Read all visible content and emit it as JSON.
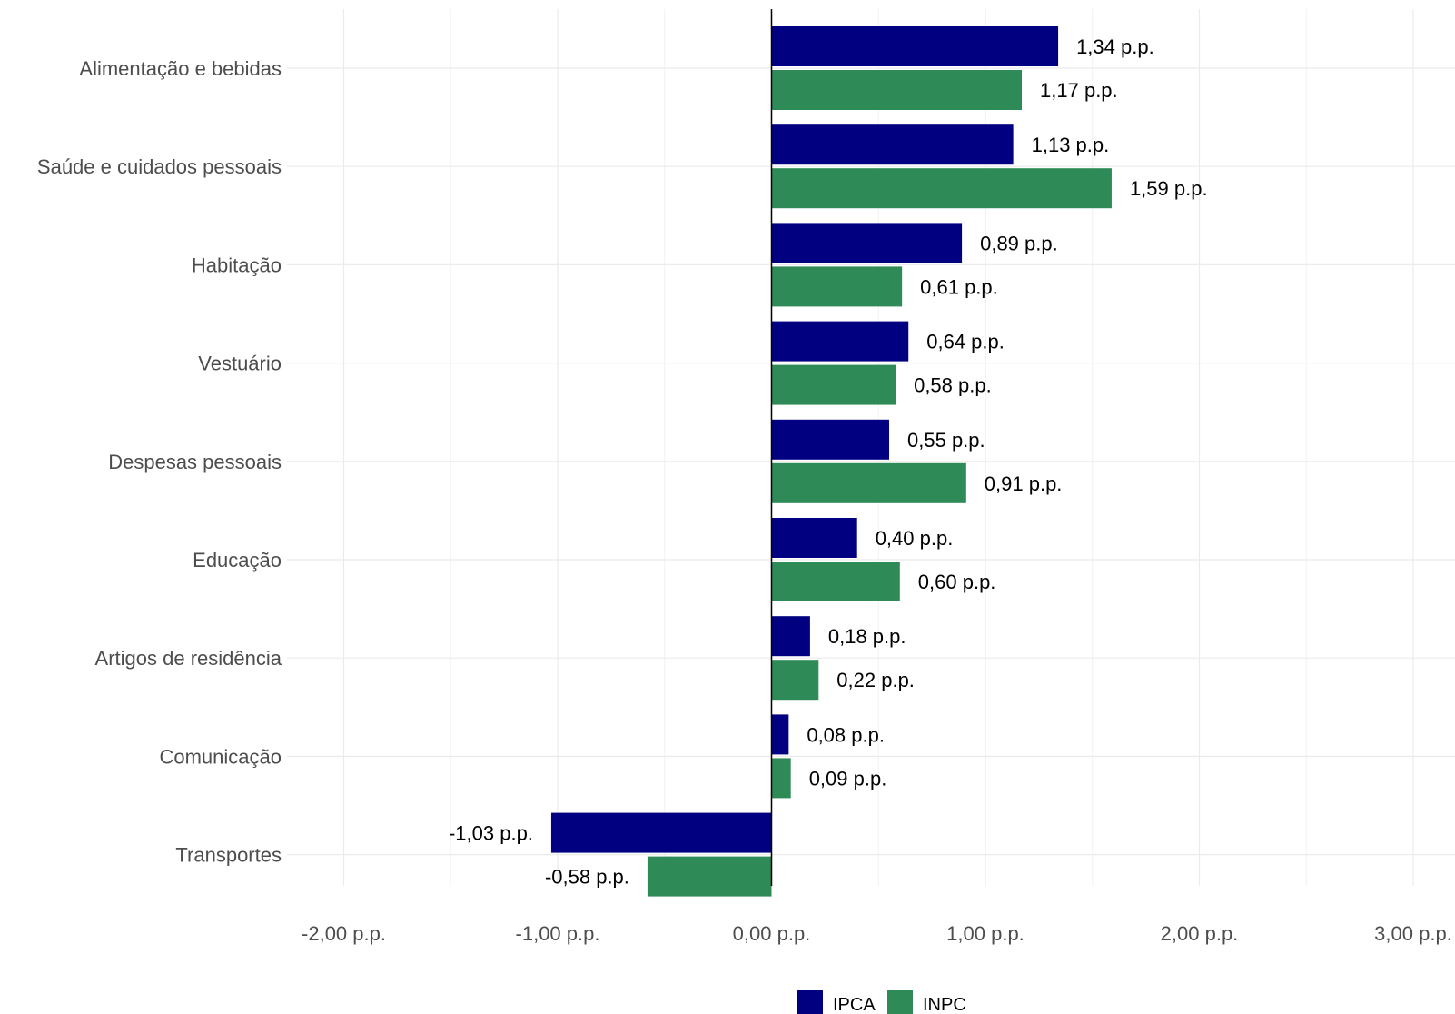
{
  "chart_data": {
    "type": "bar",
    "orientation": "horizontal",
    "categories": [
      "Alimentação e bebidas",
      "Saúde e cuidados pessoais",
      "Habitação",
      "Vestuário",
      "Despesas pessoais",
      "Educação",
      "Artigos de residência",
      "Comunicação",
      "Transportes"
    ],
    "series": [
      {
        "name": "IPCA",
        "color": "#000080",
        "values": [
          1.34,
          1.13,
          0.89,
          0.64,
          0.55,
          0.4,
          0.18,
          0.08,
          -1.03
        ],
        "labels": [
          "1,34 p.p.",
          "1,13 p.p.",
          "0,89 p.p.",
          "0,64 p.p.",
          "0,55 p.p.",
          "0,40 p.p.",
          "0,18 p.p.",
          "0,08 p.p.",
          "-1,03 p.p."
        ]
      },
      {
        "name": "INPC",
        "color": "#2E8B57",
        "values": [
          1.17,
          1.59,
          0.61,
          0.58,
          0.91,
          0.6,
          0.22,
          0.09,
          -0.58
        ],
        "labels": [
          "1,17 p.p.",
          "1,59 p.p.",
          "0,61 p.p.",
          "0,58 p.p.",
          "0,91 p.p.",
          "0,60 p.p.",
          "0,22 p.p.",
          "0,09 p.p.",
          "-0,58 p.p."
        ]
      }
    ],
    "xlim": [
      -2.0,
      3.0
    ],
    "xticks": [
      -2,
      -1,
      0,
      1,
      2,
      3
    ],
    "xtick_labels": [
      "-2,00 p.p.",
      "-1,00 p.p.",
      "0,00 p.p.",
      "1,00 p.p.",
      "2,00 p.p.",
      "3,00 p.p."
    ],
    "grid": true,
    "legend": {
      "position": "bottom",
      "entries": [
        "IPCA",
        "INPC"
      ]
    },
    "title": "",
    "xlabel": "",
    "ylabel": ""
  }
}
